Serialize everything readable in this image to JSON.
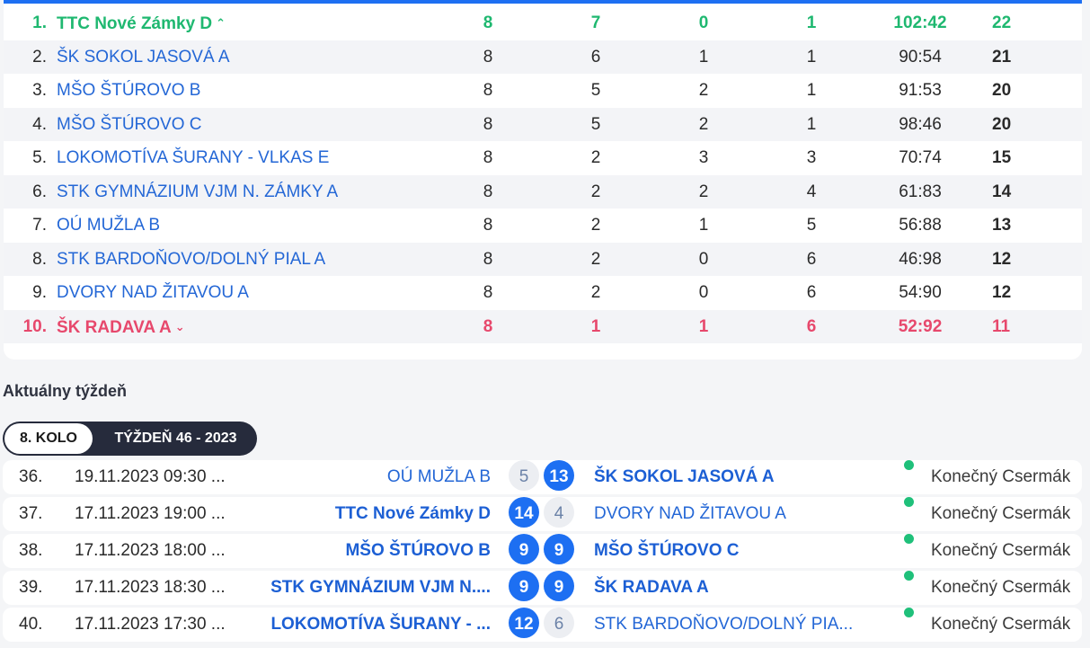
{
  "standings": [
    {
      "rank": "1.",
      "team": "TTC Nové Zámky D",
      "p": "8",
      "w": "7",
      "d": "0",
      "l": "1",
      "score": "102:42",
      "pts": "22",
      "zone": "promo"
    },
    {
      "rank": "2.",
      "team": "ŠK SOKOL JASOVÁ A",
      "p": "8",
      "w": "6",
      "d": "1",
      "l": "1",
      "score": "90:54",
      "pts": "21"
    },
    {
      "rank": "3.",
      "team": "MŠO ŠTÚROVO B",
      "p": "8",
      "w": "5",
      "d": "2",
      "l": "1",
      "score": "91:53",
      "pts": "20"
    },
    {
      "rank": "4.",
      "team": "MŠO ŠTÚROVO C",
      "p": "8",
      "w": "5",
      "d": "2",
      "l": "1",
      "score": "98:46",
      "pts": "20"
    },
    {
      "rank": "5.",
      "team": "LOKOMOTÍVA ŠURANY - VLKAS E",
      "p": "8",
      "w": "2",
      "d": "3",
      "l": "3",
      "score": "70:74",
      "pts": "15"
    },
    {
      "rank": "6.",
      "team": "STK GYMNÁZIUM VJM N. ZÁMKY A",
      "p": "8",
      "w": "2",
      "d": "2",
      "l": "4",
      "score": "61:83",
      "pts": "14"
    },
    {
      "rank": "7.",
      "team": "OÚ MUŽLA B",
      "p": "8",
      "w": "2",
      "d": "1",
      "l": "5",
      "score": "56:88",
      "pts": "13"
    },
    {
      "rank": "8.",
      "team": "STK BARDOŇOVO/DOLNÝ PIAL A",
      "p": "8",
      "w": "2",
      "d": "0",
      "l": "6",
      "score": "46:98",
      "pts": "12"
    },
    {
      "rank": "9.",
      "team": "DVORY NAD ŽITAVOU A",
      "p": "8",
      "w": "2",
      "d": "0",
      "l": "6",
      "score": "54:90",
      "pts": "12"
    },
    {
      "rank": "10.",
      "team": "ŠK RADAVA A",
      "p": "8",
      "w": "1",
      "d": "1",
      "l": "6",
      "score": "52:92",
      "pts": "11",
      "zone": "releg"
    }
  ],
  "icons": {
    "up": "chevron-up-icon",
    "down": "chevron-down-icon",
    "status": "status-dot-icon"
  },
  "colors": {
    "accent": "#1d6ff2",
    "promo": "#1fb870",
    "releg": "#e7486c",
    "status": "#1fc07a"
  },
  "week": {
    "title": "Aktuálny týždeň",
    "tab_round": "8. KOLO",
    "tab_week": "TÝŽDEŇ 46 - 2023"
  },
  "matches": [
    {
      "num": "36.",
      "date": "19.11.2023 09:30 ...",
      "home": "OÚ MUŽLA B",
      "hs": "5",
      "as": "13",
      "away": "ŠK SOKOL JASOVÁ A",
      "winner": "away",
      "status": "Konečný Csermák"
    },
    {
      "num": "37.",
      "date": "17.11.2023 19:00 ...",
      "home": "TTC Nové Zámky D",
      "hs": "14",
      "as": "4",
      "away": "DVORY NAD ŽITAVOU A",
      "winner": "home",
      "status": "Konečný Csermák"
    },
    {
      "num": "38.",
      "date": "17.11.2023 18:00 ...",
      "home": "MŠO ŠTÚROVO B",
      "hs": "9",
      "as": "9",
      "away": "MŠO ŠTÚROVO C",
      "winner": "both",
      "status": "Konečný Csermák"
    },
    {
      "num": "39.",
      "date": "17.11.2023 18:30 ...",
      "home": "STK GYMNÁZIUM VJM N....",
      "hs": "9",
      "as": "9",
      "away": "ŠK RADAVA A",
      "winner": "both",
      "status": "Konečný Csermák"
    },
    {
      "num": "40.",
      "date": "17.11.2023 17:30 ...",
      "home": "LOKOMOTÍVA ŠURANY - ...",
      "hs": "12",
      "as": "6",
      "away": "STK BARDOŇOVO/DOLNÝ PIA...",
      "winner": "home",
      "status": "Konečný Csermák"
    }
  ]
}
